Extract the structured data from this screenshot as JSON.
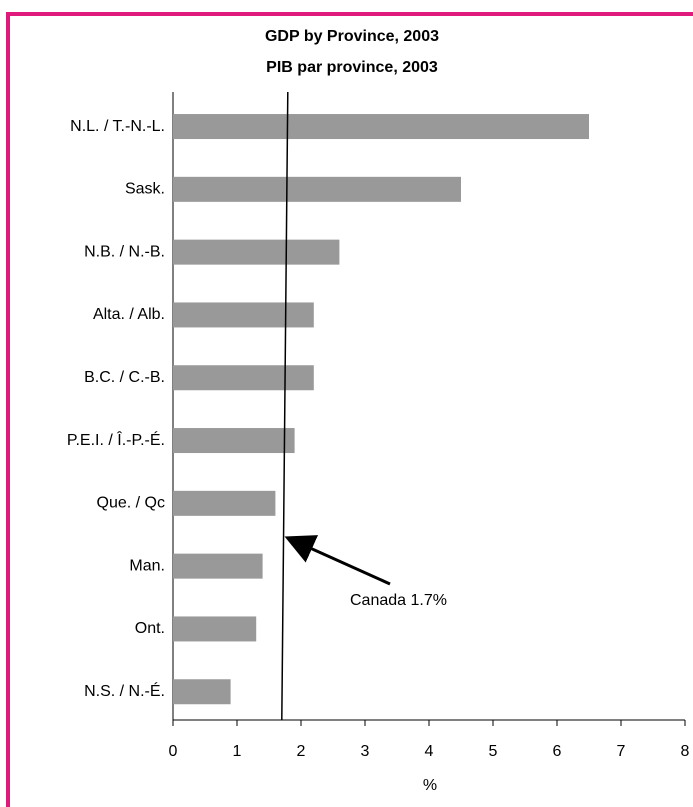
{
  "chart_data": {
    "type": "bar",
    "orientation": "horizontal",
    "title": "GDP by Province, 2003",
    "subtitle": "PIB par province, 2003",
    "categories": [
      "N.L. / T.-N.-L.",
      "Sask.",
      "N.B. / N.-B.",
      "Alta. / Alb.",
      "B.C. / C.-B.",
      "P.E.I. / Î.-P.-É.",
      "Que. / Qc",
      "Man.",
      "Ont.",
      "N.S. / N.-É."
    ],
    "values": [
      6.5,
      4.5,
      2.6,
      2.2,
      2.2,
      1.9,
      1.6,
      1.4,
      1.3,
      0.9
    ],
    "color": "#999999",
    "xlim": [
      0,
      8
    ],
    "xticks": [
      0,
      1,
      2,
      3,
      4,
      5,
      6,
      7,
      8
    ],
    "x_label": "%",
    "reference_value": 1.7,
    "annotation": "Canada 1.7%"
  }
}
